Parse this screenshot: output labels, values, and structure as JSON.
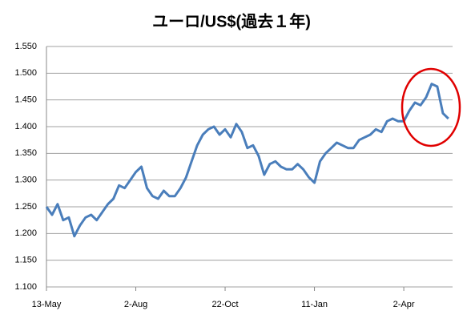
{
  "chart_data": {
    "type": "line",
    "title": "ユーロ/US$(過去１年)",
    "categories": [
      "13-May",
      null,
      null,
      null,
      null,
      null,
      null,
      null,
      null,
      null,
      null,
      null,
      null,
      null,
      null,
      null,
      "2-Aug",
      null,
      null,
      null,
      null,
      null,
      null,
      null,
      null,
      null,
      null,
      null,
      null,
      null,
      null,
      null,
      "22-Oct",
      null,
      null,
      null,
      null,
      null,
      null,
      null,
      null,
      null,
      null,
      null,
      null,
      null,
      null,
      null,
      "11-Jan",
      null,
      null,
      null,
      null,
      null,
      null,
      null,
      null,
      null,
      null,
      null,
      null,
      null,
      null,
      null,
      "2-Apr",
      null,
      null,
      null,
      null,
      null,
      null,
      null,
      null
    ],
    "series": [
      {
        "color": "#4a7ebb",
        "values": [
          1.25,
          1.235,
          1.255,
          1.225,
          1.23,
          1.195,
          1.215,
          1.23,
          1.235,
          1.225,
          1.24,
          1.255,
          1.265,
          1.29,
          1.285,
          1.3,
          1.315,
          1.325,
          1.285,
          1.27,
          1.265,
          1.28,
          1.27,
          1.27,
          1.285,
          1.305,
          1.335,
          1.365,
          1.385,
          1.395,
          1.4,
          1.385,
          1.395,
          1.38,
          1.405,
          1.39,
          1.36,
          1.365,
          1.345,
          1.31,
          1.33,
          1.335,
          1.325,
          1.32,
          1.32,
          1.33,
          1.32,
          1.305,
          1.295,
          1.335,
          1.35,
          1.36,
          1.37,
          1.365,
          1.36,
          1.36,
          1.375,
          1.38,
          1.385,
          1.395,
          1.39,
          1.41,
          1.415,
          1.41,
          1.41,
          1.43,
          1.445,
          1.44,
          1.455,
          1.48,
          1.475,
          1.425,
          1.415
        ]
      }
    ],
    "ylim": [
      1.1,
      1.55
    ],
    "yticks": [
      {
        "value": 1.1,
        "label": "1.100"
      },
      {
        "value": 1.15,
        "label": "1.150"
      },
      {
        "value": 1.2,
        "label": "1.200"
      },
      {
        "value": 1.25,
        "label": "1.250"
      },
      {
        "value": 1.3,
        "label": "1.300"
      },
      {
        "value": 1.35,
        "label": "1.350"
      },
      {
        "value": 1.4,
        "label": "1.400"
      },
      {
        "value": 1.45,
        "label": "1.450"
      },
      {
        "value": 1.5,
        "label": "1.500"
      },
      {
        "value": 1.55,
        "label": "1.550"
      }
    ],
    "grid": true
  }
}
